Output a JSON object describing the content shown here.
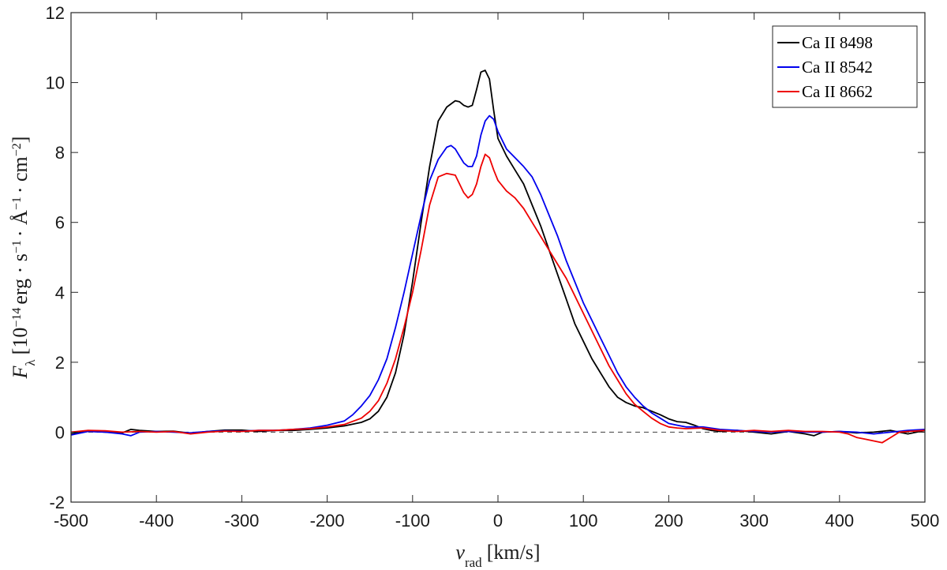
{
  "chart_data": {
    "type": "line",
    "xlabel_html": "v<tspan baseline-shift='sub' font-size='17'>rad</tspan> [km/s]",
    "xlabel": "v_rad [km/s]",
    "ylabel": "F_λ [10^{-14} erg · s^{-1} · Å^{-1} · cm^{-2}]",
    "xlim": [
      -500,
      500
    ],
    "ylim": [
      -2,
      12
    ],
    "xticks": [
      -500,
      -400,
      -300,
      -200,
      -100,
      0,
      100,
      200,
      300,
      400,
      500
    ],
    "yticks": [
      -2,
      0,
      2,
      4,
      6,
      8,
      10,
      12
    ],
    "grid": false,
    "legend_position": "top-right",
    "reference_line": {
      "y": 0,
      "style": "dashed",
      "color": "#555555"
    },
    "series": [
      {
        "name": "Ca II 8498",
        "color": "#000000",
        "x": [
          -500,
          -480,
          -460,
          -440,
          -430,
          -420,
          -400,
          -380,
          -360,
          -340,
          -320,
          -300,
          -280,
          -260,
          -240,
          -220,
          -200,
          -180,
          -160,
          -150,
          -140,
          -130,
          -120,
          -110,
          -100,
          -90,
          -80,
          -70,
          -60,
          -50,
          -45,
          -40,
          -35,
          -30,
          -25,
          -20,
          -15,
          -10,
          -5,
          0,
          10,
          20,
          30,
          40,
          50,
          60,
          70,
          80,
          90,
          100,
          110,
          120,
          130,
          140,
          150,
          160,
          170,
          180,
          190,
          200,
          210,
          220,
          230,
          240,
          250,
          260,
          280,
          300,
          320,
          340,
          360,
          370,
          380,
          400,
          420,
          440,
          460,
          480,
          500
        ],
        "y": [
          -0.05,
          0.03,
          0.0,
          -0.02,
          0.08,
          0.05,
          0.02,
          0.03,
          -0.03,
          0.02,
          0.06,
          0.06,
          0.02,
          0.05,
          0.05,
          0.08,
          0.12,
          0.18,
          0.28,
          0.38,
          0.6,
          1.0,
          1.7,
          2.8,
          4.3,
          6.0,
          7.6,
          8.9,
          9.3,
          9.48,
          9.45,
          9.35,
          9.3,
          9.35,
          9.8,
          10.3,
          10.35,
          10.1,
          9.2,
          8.4,
          7.9,
          7.5,
          7.1,
          6.5,
          5.9,
          5.2,
          4.5,
          3.8,
          3.1,
          2.6,
          2.1,
          1.7,
          1.3,
          1.0,
          0.85,
          0.75,
          0.7,
          0.6,
          0.5,
          0.38,
          0.3,
          0.28,
          0.2,
          0.1,
          0.05,
          0.02,
          0.05,
          0.0,
          -0.05,
          0.02,
          -0.05,
          -0.1,
          0.0,
          0.02,
          -0.02,
          0.0,
          0.05,
          -0.05,
          0.05
        ]
      },
      {
        "name": "Ca II 8542",
        "color": "#0000ee",
        "x": [
          -500,
          -480,
          -460,
          -440,
          -430,
          -420,
          -400,
          -380,
          -360,
          -340,
          -320,
          -300,
          -280,
          -260,
          -240,
          -220,
          -200,
          -180,
          -170,
          -160,
          -150,
          -140,
          -130,
          -120,
          -110,
          -100,
          -90,
          -80,
          -70,
          -60,
          -55,
          -50,
          -45,
          -40,
          -35,
          -30,
          -25,
          -20,
          -15,
          -10,
          -5,
          0,
          10,
          20,
          30,
          40,
          50,
          60,
          70,
          80,
          90,
          100,
          110,
          120,
          130,
          140,
          150,
          160,
          170,
          180,
          190,
          200,
          210,
          220,
          240,
          260,
          280,
          300,
          320,
          340,
          360,
          380,
          400,
          420,
          440,
          460,
          480,
          500
        ],
        "y": [
          -0.08,
          0.02,
          0.0,
          -0.05,
          -0.1,
          0.0,
          0.02,
          0.0,
          -0.02,
          0.02,
          0.04,
          0.03,
          0.05,
          0.05,
          0.08,
          0.12,
          0.2,
          0.32,
          0.5,
          0.75,
          1.05,
          1.5,
          2.1,
          3.0,
          4.0,
          5.1,
          6.2,
          7.2,
          7.8,
          8.15,
          8.2,
          8.1,
          7.9,
          7.7,
          7.6,
          7.6,
          7.9,
          8.5,
          8.9,
          9.05,
          8.95,
          8.6,
          8.1,
          7.85,
          7.6,
          7.3,
          6.8,
          6.2,
          5.6,
          4.9,
          4.3,
          3.7,
          3.2,
          2.7,
          2.2,
          1.7,
          1.3,
          1.0,
          0.75,
          0.55,
          0.4,
          0.25,
          0.2,
          0.15,
          0.15,
          0.08,
          0.05,
          0.02,
          0.0,
          0.02,
          0.0,
          0.0,
          0.02,
          0.0,
          -0.05,
          0.0,
          0.05,
          0.08
        ]
      },
      {
        "name": "Ca II 8662",
        "color": "#ee0000",
        "x": [
          -500,
          -480,
          -460,
          -440,
          -420,
          -400,
          -380,
          -360,
          -340,
          -320,
          -300,
          -280,
          -260,
          -240,
          -220,
          -200,
          -180,
          -160,
          -150,
          -140,
          -130,
          -120,
          -110,
          -100,
          -90,
          -80,
          -70,
          -60,
          -50,
          -45,
          -40,
          -35,
          -30,
          -25,
          -20,
          -15,
          -10,
          -5,
          0,
          10,
          20,
          30,
          40,
          50,
          60,
          70,
          80,
          90,
          100,
          110,
          120,
          130,
          140,
          150,
          160,
          170,
          180,
          190,
          200,
          210,
          220,
          240,
          260,
          280,
          300,
          320,
          340,
          360,
          380,
          400,
          410,
          420,
          430,
          440,
          450,
          460,
          470,
          480,
          500
        ],
        "y": [
          0.0,
          0.05,
          0.04,
          0.0,
          0.02,
          0.0,
          0.02,
          -0.05,
          0.0,
          0.03,
          0.02,
          0.05,
          0.05,
          0.08,
          0.1,
          0.15,
          0.22,
          0.4,
          0.6,
          0.9,
          1.4,
          2.1,
          3.0,
          4.0,
          5.2,
          6.5,
          7.3,
          7.4,
          7.35,
          7.1,
          6.85,
          6.7,
          6.8,
          7.1,
          7.6,
          7.95,
          7.85,
          7.5,
          7.2,
          6.9,
          6.7,
          6.4,
          6.0,
          5.6,
          5.2,
          4.8,
          4.4,
          3.9,
          3.4,
          2.9,
          2.4,
          1.9,
          1.5,
          1.1,
          0.8,
          0.6,
          0.4,
          0.25,
          0.15,
          0.12,
          0.1,
          0.12,
          0.05,
          0.02,
          0.05,
          0.02,
          0.05,
          0.02,
          0.02,
          0.0,
          -0.05,
          -0.15,
          -0.2,
          -0.25,
          -0.3,
          -0.15,
          0.0,
          0.02,
          0.05
        ]
      }
    ]
  }
}
